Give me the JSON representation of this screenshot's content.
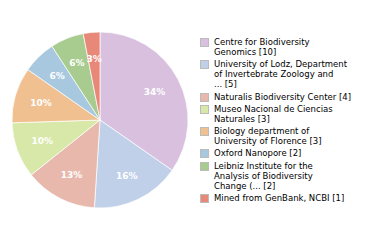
{
  "chart_data": {
    "type": "pie",
    "categories": [
      "Centre for Biodiversity\nGenomics [10]",
      "University of Lodz, Department\nof Invertebrate Zoology and\n... [5]",
      "Naturalis Biodiversity Center [4]",
      "Museo Nacional de Ciencias\nNaturales [3]",
      "Biology department of\nUniversity of Florence [3]",
      "Oxford Nanopore [2]",
      "Leibniz Institute for the\nAnalysis of Biodiversity\nChange (... [2]",
      "Mined from GenBank, NCBI [1]"
    ],
    "values": [
      34,
      16,
      13,
      10,
      10,
      6,
      6,
      3
    ],
    "value_labels": [
      "34%",
      "16%",
      "13%",
      "10%",
      "10%",
      "6%",
      "6%",
      "3%"
    ],
    "colors": [
      "#d9c0df",
      "#c0d0e8",
      "#e8b8ac",
      "#d8e8a8",
      "#f0c090",
      "#a8c8e0",
      "#a8cc90",
      "#e88878"
    ],
    "data_labels": true,
    "legend": "right"
  }
}
